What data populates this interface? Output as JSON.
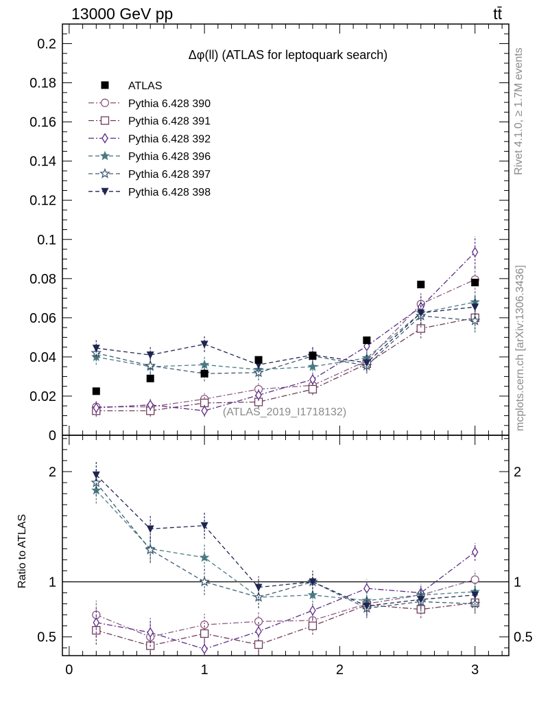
{
  "header": {
    "energy_label": "13000 GeV pp",
    "process_label": "tt̄"
  },
  "side_text": {
    "rivet": "Rivet 4.1.0, ≥ 1.7M events",
    "mcplots": "mcplots.cern.ch [arXiv:1306.3436]"
  },
  "chart_data": [
    {
      "type": "scatter",
      "panel": "main",
      "title": "Δφ(ll) (ATLAS for leptoquark search)",
      "watermark": "(ATLAS_2019_I1718132)",
      "xlabel": "",
      "ylabel": "",
      "xlim": [
        -0.05,
        3.25
      ],
      "ylim": [
        0,
        0.21
      ],
      "y_ticks": [
        0,
        0.02,
        0.04,
        0.06,
        0.08,
        0.1,
        0.12,
        0.14,
        0.16,
        0.18,
        0.2
      ],
      "y_tick_labels": [
        "0",
        "0.02",
        "0.04",
        "0.06",
        "0.08",
        "0.1",
        "0.12",
        "0.14",
        "0.16",
        "0.18",
        "0.2"
      ],
      "x": [
        0.2,
        0.6,
        1.0,
        1.4,
        1.8,
        2.2,
        2.6,
        3.0
      ],
      "legend_position": "top-left",
      "series": [
        {
          "name": "ATLAS",
          "marker": "filled-square",
          "color": "#000000",
          "dash": "none",
          "values": [
            0.0225,
            0.029,
            0.0315,
            0.0385,
            0.0405,
            0.0485,
            0.077,
            0.078
          ],
          "errors": [
            0,
            0,
            0,
            0,
            0,
            0,
            0,
            0
          ]
        },
        {
          "name": "Pythia 6.428 390",
          "marker": "open-circle",
          "color": "#8b5a83",
          "dash": "8 3 2 3",
          "values": [
            0.0145,
            0.0145,
            0.0185,
            0.0235,
            0.0255,
            0.038,
            0.067,
            0.0795
          ],
          "errors": [
            0.003,
            0.003,
            0.003,
            0.003,
            0.003,
            0.004,
            0.006,
            0.007
          ]
        },
        {
          "name": "Pythia 6.428 391",
          "marker": "open-square",
          "color": "#6e3b57",
          "dash": "8 3 2 3",
          "values": [
            0.0125,
            0.0125,
            0.0165,
            0.017,
            0.0235,
            0.0365,
            0.0545,
            0.06
          ],
          "errors": [
            0.003,
            0.003,
            0.003,
            0.003,
            0.003,
            0.004,
            0.005,
            0.006
          ]
        },
        {
          "name": "Pythia 6.428 392",
          "marker": "open-diamond",
          "color": "#5b2a86",
          "dash": "8 3 2 3",
          "values": [
            0.014,
            0.0155,
            0.0125,
            0.0205,
            0.0285,
            0.0455,
            0.0655,
            0.0935
          ],
          "errors": [
            0.003,
            0.003,
            0.003,
            0.003,
            0.003,
            0.004,
            0.006,
            0.008
          ]
        },
        {
          "name": "Pythia 6.428 396",
          "marker": "filled-star",
          "color": "#4a7a84",
          "dash": "6 4",
          "values": [
            0.04,
            0.035,
            0.036,
            0.0335,
            0.035,
            0.0395,
            0.0625,
            0.068
          ],
          "errors": [
            0.004,
            0.004,
            0.004,
            0.004,
            0.004,
            0.004,
            0.006,
            0.006
          ]
        },
        {
          "name": "Pythia 6.428 397",
          "marker": "open-star",
          "color": "#3d5a70",
          "dash": "6 4",
          "values": [
            0.042,
            0.0355,
            0.0315,
            0.032,
            0.0405,
            0.0355,
            0.061,
            0.0585
          ],
          "errors": [
            0.004,
            0.004,
            0.004,
            0.004,
            0.004,
            0.004,
            0.006,
            0.006
          ]
        },
        {
          "name": "Pythia 6.428 398",
          "marker": "filled-triangle-down",
          "color": "#1f2550",
          "dash": "6 4",
          "values": [
            0.0445,
            0.041,
            0.0465,
            0.036,
            0.041,
            0.037,
            0.0625,
            0.0655
          ],
          "errors": [
            0.004,
            0.004,
            0.004,
            0.004,
            0.004,
            0.004,
            0.006,
            0.006
          ]
        }
      ]
    },
    {
      "type": "scatter",
      "panel": "ratio",
      "title": "",
      "xlabel": "",
      "ylabel": "Ratio to ATLAS",
      "xlim": [
        -0.05,
        3.25
      ],
      "ylim": [
        0.33,
        2.33
      ],
      "y_ticks": [
        0.5,
        1,
        2
      ],
      "y_tick_labels": [
        "0.5",
        "1",
        "2"
      ],
      "x_ticks": [
        0,
        1,
        2,
        3
      ],
      "x_tick_labels": [
        "0",
        "1",
        "2",
        "3"
      ],
      "reference_line": 1,
      "x": [
        0.2,
        0.6,
        1.0,
        1.4,
        1.8,
        2.2,
        2.6,
        3.0
      ],
      "series": [
        {
          "name": "Pythia 6.428 390",
          "values": [
            0.7,
            0.5,
            0.61,
            0.64,
            0.65,
            0.8,
            0.88,
            1.02
          ],
          "errors": [
            0.13,
            0.13,
            0.1,
            0.09,
            0.08,
            0.08,
            0.08,
            0.08
          ]
        },
        {
          "name": "Pythia 6.428 391",
          "values": [
            0.56,
            0.42,
            0.53,
            0.43,
            0.6,
            0.79,
            0.75,
            0.81
          ],
          "errors": [
            0.13,
            0.13,
            0.1,
            0.09,
            0.08,
            0.08,
            0.08,
            0.08
          ]
        },
        {
          "name": "Pythia 6.428 392",
          "values": [
            0.63,
            0.54,
            0.39,
            0.55,
            0.74,
            0.94,
            0.9,
            1.27
          ],
          "errors": [
            0.13,
            0.13,
            0.1,
            0.09,
            0.08,
            0.08,
            0.08,
            0.08
          ]
        },
        {
          "name": "Pythia 6.428 396",
          "values": [
            1.83,
            1.3,
            1.22,
            0.86,
            0.88,
            0.83,
            0.88,
            0.91
          ],
          "errors": [
            0.12,
            0.12,
            0.12,
            0.1,
            0.1,
            0.09,
            0.09,
            0.09
          ]
        },
        {
          "name": "Pythia 6.428 397",
          "values": [
            1.9,
            1.29,
            1.0,
            0.86,
            1.0,
            0.76,
            0.82,
            0.8
          ],
          "errors": [
            0.12,
            0.12,
            0.12,
            0.1,
            0.1,
            0.09,
            0.09,
            0.09
          ]
        },
        {
          "name": "Pythia 6.428 398",
          "values": [
            1.97,
            1.48,
            1.51,
            0.95,
            1.0,
            0.78,
            0.84,
            0.88
          ],
          "errors": [
            0.12,
            0.12,
            0.12,
            0.1,
            0.1,
            0.09,
            0.09,
            0.09
          ]
        }
      ]
    }
  ]
}
